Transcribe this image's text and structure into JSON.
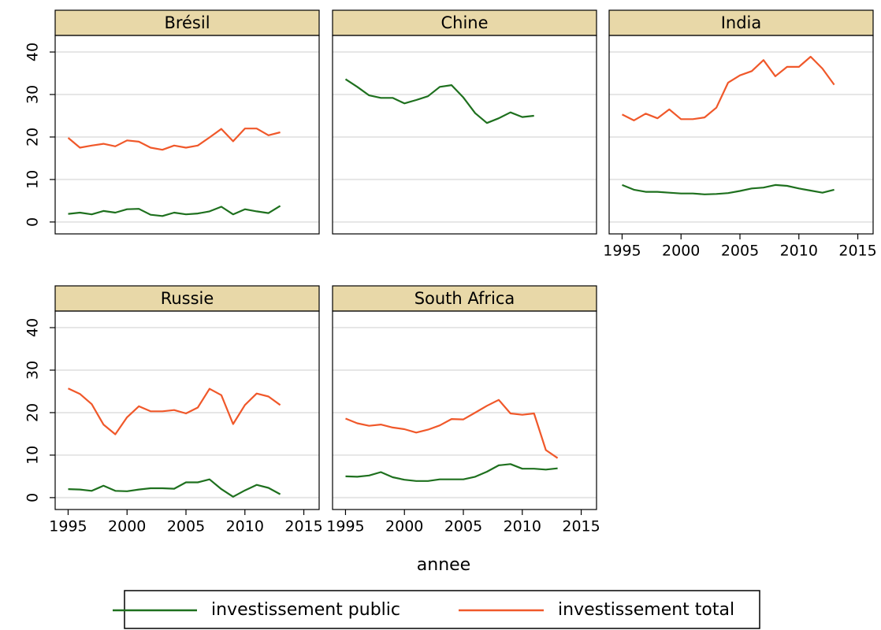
{
  "chart_data": [
    {
      "type": "line",
      "title": "Brésil",
      "x": [
        1995,
        1996,
        1997,
        1998,
        1999,
        2000,
        2001,
        2002,
        2003,
        2004,
        2005,
        2006,
        2007,
        2008,
        2009,
        2010,
        2011,
        2012,
        2013
      ],
      "series": [
        {
          "name": "investissement public",
          "color": "#1e701e",
          "values": [
            1.9,
            2.2,
            1.8,
            2.6,
            2.2,
            3.0,
            3.1,
            1.7,
            1.4,
            2.2,
            1.8,
            2.0,
            2.5,
            3.6,
            1.8,
            3.0,
            2.5,
            2.1,
            3.8
          ]
        },
        {
          "name": "investissement total",
          "color": "#f0582a",
          "values": [
            19.8,
            17.5,
            18.0,
            18.4,
            17.8,
            19.2,
            18.9,
            17.5,
            17.0,
            18.0,
            17.5,
            18.0,
            19.9,
            21.9,
            19.0,
            22.0,
            22.0,
            20.4,
            21.1
          ]
        }
      ],
      "xlim": [
        1993.9,
        2016.3
      ],
      "ylim": [
        -2.8,
        43.9
      ],
      "yticks": [
        0,
        10,
        20,
        30,
        40
      ],
      "grid": true
    },
    {
      "type": "line",
      "title": "Chine",
      "x": [
        1995,
        1996,
        1997,
        1998,
        1999,
        2000,
        2001,
        2002,
        2003,
        2004,
        2005,
        2006,
        2007,
        2008,
        2009,
        2010,
        2011
      ],
      "series": [
        {
          "name": "investissement public",
          "color": "#1e701e",
          "values": [
            33.6,
            31.8,
            29.8,
            29.2,
            29.2,
            27.9,
            28.7,
            29.6,
            31.8,
            32.2,
            29.3,
            25.6,
            23.3,
            24.4,
            25.8,
            24.7,
            25.0
          ]
        }
      ],
      "xlim": [
        1993.9,
        2016.3
      ],
      "ylim": [
        -2.8,
        43.9
      ],
      "yticks": [
        0,
        10,
        20,
        30,
        40
      ],
      "grid": true
    },
    {
      "type": "line",
      "title": "India",
      "x": [
        1995,
        1996,
        1997,
        1998,
        1999,
        2000,
        2001,
        2002,
        2003,
        2004,
        2005,
        2006,
        2007,
        2008,
        2009,
        2010,
        2011,
        2012,
        2013
      ],
      "series": [
        {
          "name": "investissement public",
          "color": "#1e701e",
          "values": [
            8.7,
            7.6,
            7.1,
            7.1,
            6.9,
            6.7,
            6.7,
            6.5,
            6.6,
            6.8,
            7.3,
            7.9,
            8.1,
            8.7,
            8.5,
            7.9,
            7.4,
            6.9,
            7.6
          ]
        },
        {
          "name": "investissement total",
          "color": "#f0582a",
          "values": [
            25.3,
            23.9,
            25.5,
            24.4,
            26.5,
            24.2,
            24.2,
            24.6,
            26.9,
            32.8,
            34.5,
            35.5,
            38.1,
            34.3,
            36.5,
            36.5,
            38.9,
            36.1,
            32.3
          ]
        }
      ],
      "xlim": [
        1993.9,
        2016.3
      ],
      "xticks": [
        1995,
        2000,
        2005,
        2010,
        2015
      ],
      "ylim": [
        -2.8,
        43.9
      ],
      "yticks": [
        0,
        10,
        20,
        30,
        40
      ],
      "grid": true
    },
    {
      "type": "line",
      "title": "Russie",
      "x": [
        1995,
        1996,
        1997,
        1998,
        1999,
        2000,
        2001,
        2002,
        2003,
        2004,
        2005,
        2006,
        2007,
        2008,
        2009,
        2010,
        2011,
        2012,
        2013
      ],
      "series": [
        {
          "name": "investissement public",
          "color": "#1e701e",
          "values": [
            2.0,
            1.9,
            1.6,
            2.8,
            1.6,
            1.5,
            1.9,
            2.2,
            2.2,
            2.1,
            3.6,
            3.6,
            4.3,
            2.0,
            0.2,
            1.7,
            3.0,
            2.3,
            0.8
          ]
        },
        {
          "name": "investissement total",
          "color": "#f0582a",
          "values": [
            25.7,
            24.4,
            22.0,
            17.2,
            14.9,
            18.9,
            21.5,
            20.3,
            20.3,
            20.6,
            19.8,
            21.2,
            25.6,
            24.1,
            17.3,
            21.8,
            24.5,
            23.8,
            21.8
          ]
        }
      ],
      "xlim": [
        1993.9,
        2016.3
      ],
      "xticks": [
        1995,
        2000,
        2005,
        2010,
        2015
      ],
      "ylim": [
        -2.8,
        43.9
      ],
      "yticks": [
        0,
        10,
        20,
        30,
        40
      ],
      "grid": true
    },
    {
      "type": "line",
      "title": "South Africa",
      "x": [
        1995,
        1996,
        1997,
        1998,
        1999,
        2000,
        2001,
        2002,
        2003,
        2004,
        2005,
        2006,
        2007,
        2008,
        2009,
        2010,
        2011,
        2012,
        2013
      ],
      "series": [
        {
          "name": "investissement public",
          "color": "#1e701e",
          "values": [
            5.0,
            4.9,
            5.2,
            6.0,
            4.8,
            4.2,
            3.9,
            3.9,
            4.3,
            4.3,
            4.3,
            4.9,
            6.1,
            7.6,
            7.9,
            6.8,
            6.8,
            6.6,
            6.9
          ]
        },
        {
          "name": "investissement total",
          "color": "#f0582a",
          "values": [
            18.6,
            17.5,
            16.9,
            17.2,
            16.5,
            16.1,
            15.3,
            16.0,
            17.0,
            18.5,
            18.4,
            20.0,
            21.6,
            23.0,
            19.8,
            19.5,
            19.8,
            11.2,
            9.3
          ]
        }
      ],
      "xlim": [
        1993.9,
        2016.3
      ],
      "xticks": [
        1995,
        2000,
        2005,
        2010,
        2015
      ],
      "ylim": [
        -2.8,
        43.9
      ],
      "yticks": [
        0,
        10,
        20,
        30,
        40
      ],
      "grid": true
    }
  ],
  "x_axis_title": "annee"
}
